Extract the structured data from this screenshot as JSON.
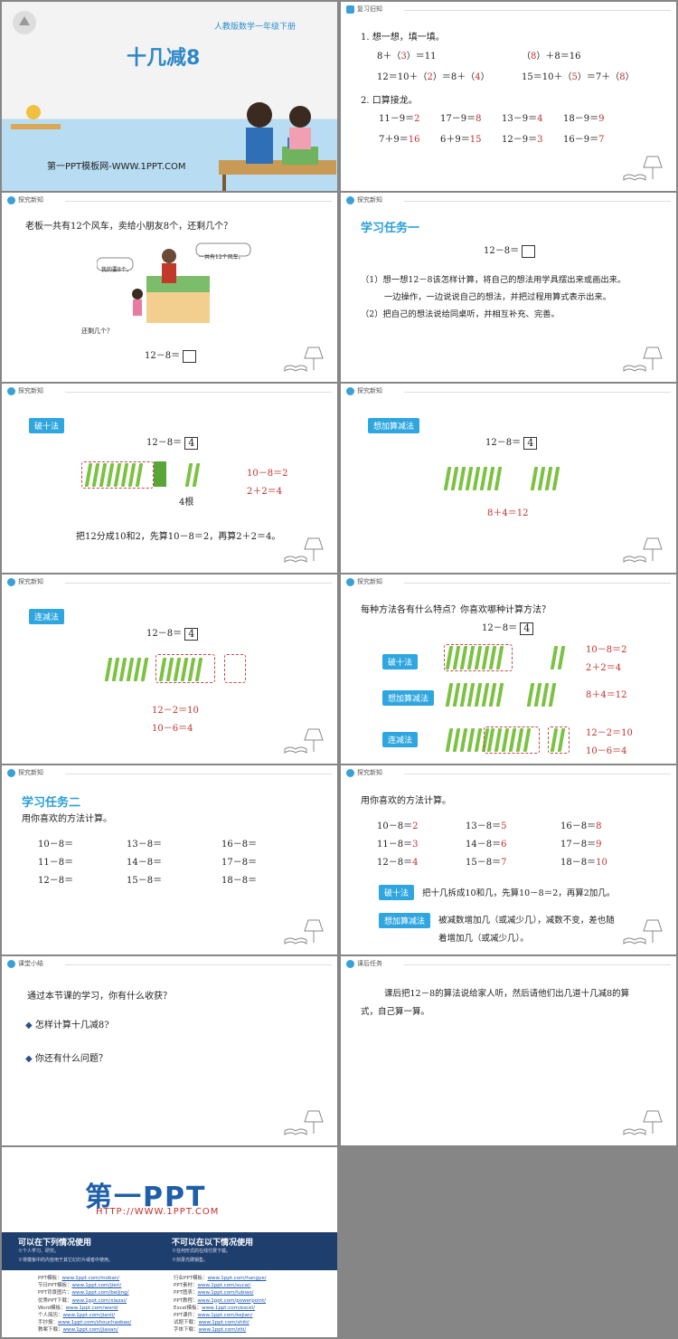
{
  "s1": {
    "title": "十几减8",
    "book": "人教版数学一年级下册",
    "site": "第一PPT模板网-WWW.1PPT.COM"
  },
  "s2": {
    "hdr": "复习旧知",
    "q1": "1.  想一想，填一填。",
    "l1a": "8＋（",
    "a1a": "3",
    "l1a2": "）＝11",
    "l1b": "（",
    "a1b": "8",
    "l1b2": "）＋8＝16",
    "l2a": "12＝10＋（",
    "a2a": "2",
    "l2a2": "）＝8＋（",
    "a2a2": "4",
    "l2a3": "）",
    "l2b": "15＝10＋（",
    "a2b": "5",
    "l2b2": "）＝7＋（",
    "a2b2": "8",
    "l2b3": "）",
    "q2": "2.  口算接龙。",
    "r1": [
      [
        "11－9＝",
        "2"
      ],
      [
        "17－9＝",
        "8"
      ],
      [
        "13－9＝",
        "4"
      ],
      [
        "18－9＝",
        "9"
      ]
    ],
    "r2": [
      [
        "7＋9＝",
        "16"
      ],
      [
        "6＋9＝",
        "15"
      ],
      [
        "12－9＝",
        "3"
      ],
      [
        "16－9＝",
        "7"
      ]
    ]
  },
  "s3": {
    "hdr": "探究新知",
    "q": "老板一共有12个风车，卖给小朋友8个，还剩几个？",
    "b1": "我的要8个。",
    "b2": "一共有12个风车。",
    "left": "还剩几个？",
    "eq": "12－8＝"
  },
  "s4": {
    "hdr": "探究新知",
    "h": "学习任务一",
    "eq": "12－8＝",
    "p1": "（1）想一想12－8该怎样计算，将自己的想法用学具摆出来或画出来。",
    "p1b": "一边操作，一边说说自己的想法，并把过程用算式表示出来。",
    "p2": "（2）把自己的想法说给同桌听，并相互补充、完善。"
  },
  "s5": {
    "hdr": "探究新知",
    "tag": "破十法",
    "eq": "12－8＝",
    "ans": "4",
    "e1": "10－8＝2",
    "e2": "2＋2＝4",
    "unit": "4根",
    "desc": "把12分成10和2，先算10－8＝2，再算2＋2＝4。"
  },
  "s6": {
    "hdr": "探究新知",
    "tag": "想加算减法",
    "eq": "12－8＝",
    "ans": "4",
    "e1": "8＋4＝12"
  },
  "s7": {
    "hdr": "探究新知",
    "tag": "连减法",
    "eq": "12－8＝",
    "ans": "4",
    "e1": "12－2＝10",
    "e2": "10－6＝4"
  },
  "s8": {
    "hdr": "探究新知",
    "q": "每种方法各有什么特点？你喜欢哪种计算方法？",
    "eq": "12－8＝",
    "ans": "4",
    "t1": "破十法",
    "t2": "想加算减法",
    "t3": "连减法",
    "e1": "10－8＝2",
    "e2": "2＋2＝4",
    "e3": "8＋4＝12",
    "e4": "12－2＝10",
    "e5": "10－6＝4"
  },
  "s9": {
    "hdr": "探究新知",
    "h": "学习任务二",
    "q": "用你喜欢的方法计算。",
    "rows": [
      [
        "10－8＝",
        "13－8＝",
        "16－8＝"
      ],
      [
        "11－8＝",
        "14－8＝",
        "17－8＝"
      ],
      [
        "12－8＝",
        "15－8＝",
        "18－8＝"
      ]
    ]
  },
  "s10": {
    "hdr": "探究新知",
    "q": "用你喜欢的方法计算。",
    "rows": [
      [
        [
          "10－8＝",
          "2"
        ],
        [
          "13－8＝",
          "5"
        ],
        [
          "16－8＝",
          "8"
        ]
      ],
      [
        [
          "11－8＝",
          "3"
        ],
        [
          "14－8＝",
          "6"
        ],
        [
          "17－8＝",
          "9"
        ]
      ],
      [
        [
          "12－8＝",
          "4"
        ],
        [
          "15－8＝",
          "7"
        ],
        [
          "18－8＝",
          "10"
        ]
      ]
    ],
    "t1": "破十法",
    "d1": "把十几拆成10和几，先算10－8＝2，再算2加几。",
    "t2": "想加算减法",
    "d2": "被减数增加几（或减少几），减数不变，差也随",
    "d2b": "着增加几（或减少几）。"
  },
  "s11": {
    "hdr": "课堂小结",
    "q": "通过本节课的学习，你有什么收获？",
    "b1": "怎样计算十几减8?",
    "b2": "你还有什么问题？"
  },
  "s12": {
    "hdr": "课后任务",
    "p": "课后把12－8的算法说给家人听，然后请他们出几道十几减8的算",
    "p2": "式，自己算一算。"
  },
  "s13": {
    "logo": "第一PPT",
    "url": "HTTP://WWW.1PPT.COM",
    "can": "可以在下列情况使用",
    "cant": "不可以在以下情况使用",
    "can1": "※个人学习、研究。",
    "can2": "※将模板中的内容用于其它幻灯片或者中使用。",
    "cant1": "※任何形式的在线付费下载。",
    "cant2": "※刻录光碟销售。",
    "links1": [
      [
        "PPT模板：",
        "www.1ppt.com/moban/"
      ],
      [
        "节日PPT模板：",
        "www.1ppt.com/jieri/"
      ],
      [
        "PPT背景图片：",
        "www.1ppt.com/beijing/"
      ],
      [
        "优秀PPT下载：",
        "www.1ppt.com/xiazai/"
      ],
      [
        "Word模板：",
        "www.1ppt.com/word/"
      ],
      [
        "个人简历：",
        "www.1ppt.com/jianli/"
      ],
      [
        "手抄报：",
        "www.1ppt.com/shouchaobao/"
      ],
      [
        "教案下载：",
        "www.1ppt.com/jiaoan/"
      ]
    ],
    "links2": [
      [
        "行业PPT模板：",
        "www.1ppt.com/hangye/"
      ],
      [
        "PPT素材：",
        "www.1ppt.com/sucai/"
      ],
      [
        "PPT图表：",
        "www.1ppt.com/tubiao/"
      ],
      [
        "PPT教程：",
        "www.1ppt.com/powerpoint/"
      ],
      [
        "Excel模板：",
        "www.1ppt.com/excel/"
      ],
      [
        "PPT课件：",
        "www.1ppt.com/kejian/"
      ],
      [
        "试题下载：",
        "www.1ppt.com/shiti/"
      ],
      [
        "字体下载：",
        "www.1ppt.com/ziti/"
      ]
    ]
  }
}
